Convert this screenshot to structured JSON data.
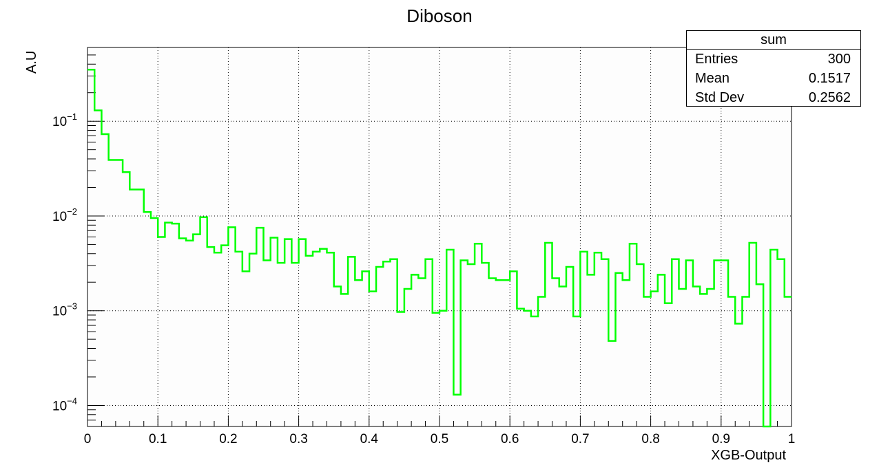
{
  "chart_data": {
    "type": "step-histogram",
    "title": "Diboson",
    "xlabel": "XGB-Output",
    "ylabel": "A.U",
    "x_range": [
      0,
      1
    ],
    "y_scale": "log",
    "y_range": [
      6e-05,
      0.6
    ],
    "grid": true,
    "series": [
      {
        "color": "#00ff00",
        "bin_edges_start": 0,
        "bin_width": 0.01,
        "values": [
          0.35,
          0.13,
          0.073,
          0.039,
          0.039,
          0.029,
          0.019,
          0.019,
          0.011,
          0.0095,
          0.006,
          0.0085,
          0.0083,
          0.0058,
          0.0055,
          0.0064,
          0.0097,
          0.0047,
          0.0041,
          0.0049,
          0.0076,
          0.0042,
          0.0026,
          0.004,
          0.0075,
          0.0034,
          0.0059,
          0.0032,
          0.0057,
          0.0032,
          0.0057,
          0.0038,
          0.0042,
          0.0045,
          0.0041,
          0.0018,
          0.0015,
          0.0037,
          0.0021,
          0.0026,
          0.0016,
          0.0029,
          0.0033,
          0.0035,
          0.00097,
          0.0017,
          0.0024,
          0.0022,
          0.0035,
          0.00095,
          0.001,
          0.0044,
          0.00013,
          0.0034,
          0.0031,
          0.0051,
          0.0032,
          0.0022,
          0.0021,
          0.0021,
          0.0026,
          0.00105,
          0.001,
          0.00087,
          0.0014,
          0.0052,
          0.0022,
          0.0018,
          0.0029,
          0.00087,
          0.0042,
          0.0024,
          0.0041,
          0.0035,
          0.00048,
          0.0025,
          0.0021,
          0.0051,
          0.0031,
          0.0014,
          0.0016,
          0.0024,
          0.0012,
          0.0035,
          0.0017,
          0.0034,
          0.0018,
          0.0015,
          0.0017,
          0.0034,
          0.0034,
          0.0014,
          0.00073,
          0.0014,
          0.0052,
          0.0019,
          5e-05,
          0.0044,
          0.0035,
          0.0014
        ]
      }
    ],
    "x_ticks": [
      "0",
      "0.1",
      "0.2",
      "0.3",
      "0.4",
      "0.5",
      "0.6",
      "0.7",
      "0.8",
      "0.9",
      "1"
    ],
    "y_ticks": [
      {
        "value": 0.1,
        "mantissa": "10",
        "exponent": "−1"
      },
      {
        "value": 0.01,
        "mantissa": "10",
        "exponent": "−2"
      },
      {
        "value": 0.001,
        "mantissa": "10",
        "exponent": "−3"
      },
      {
        "value": 0.0001,
        "mantissa": "10",
        "exponent": "−4"
      }
    ]
  },
  "stats_box": {
    "name": "sum",
    "entries_label": "Entries",
    "entries_value": "300",
    "mean_label": "Mean",
    "mean_value": "0.1517",
    "stddev_label": "Std Dev",
    "stddev_value": "0.2562"
  }
}
